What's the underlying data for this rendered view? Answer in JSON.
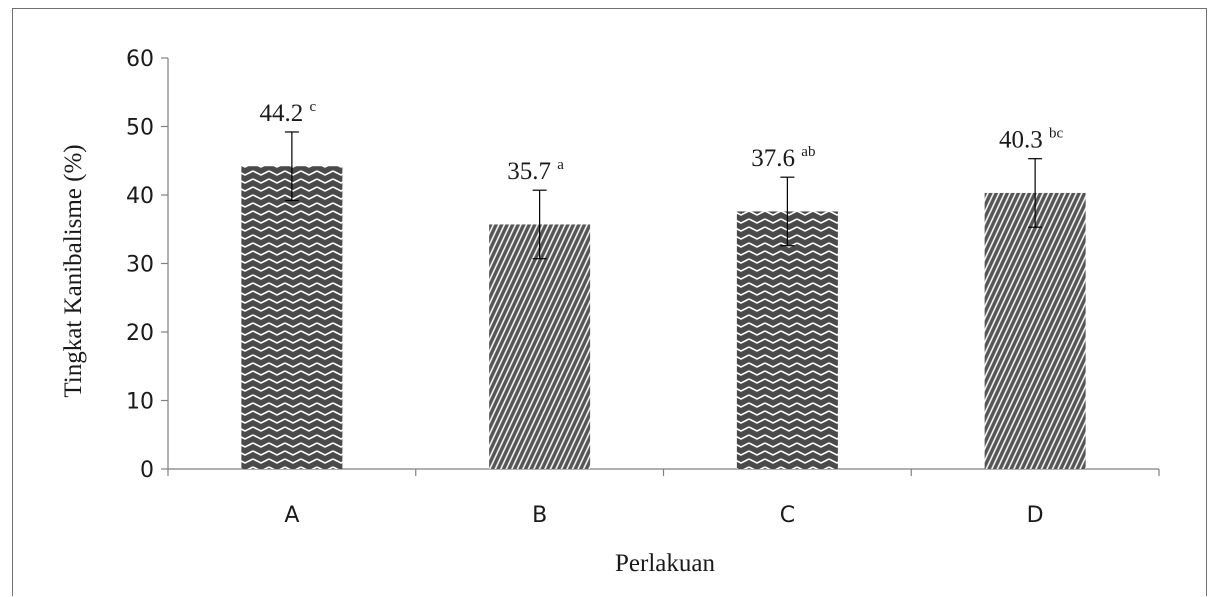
{
  "chart_data": {
    "type": "bar",
    "categories": [
      "A",
      "B",
      "C",
      "D"
    ],
    "values": [
      44.2,
      35.7,
      37.6,
      40.3
    ],
    "error": [
      5.0,
      5.0,
      5.0,
      5.0
    ],
    "significance": [
      "c",
      "a",
      "ab",
      "bc"
    ],
    "data_labels": [
      "44.2",
      "35.7",
      "37.6",
      "40.3"
    ],
    "xlabel": "Perlakuan",
    "ylabel": "Tingkat Kanibalisme (%)",
    "ylim": [
      0,
      60
    ],
    "yticks": [
      0,
      10,
      20,
      30,
      40,
      50,
      60
    ],
    "grid": false,
    "legend": "none",
    "patterns": [
      "zigzag",
      "diagonal",
      "zigzag",
      "diagonal"
    ],
    "colors": {
      "bar_dark": "#4a4a4a",
      "bar_light": "#ffffff",
      "axis": "#808080",
      "error_bar": "#000000"
    }
  }
}
